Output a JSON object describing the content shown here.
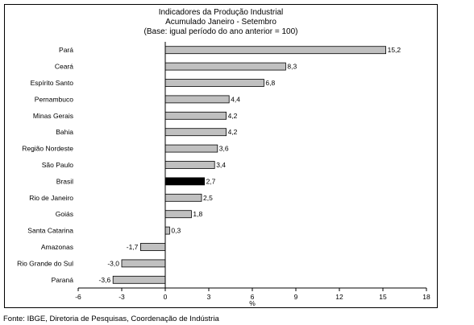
{
  "title_lines": [
    "Indicadores da Produção Industrial",
    "Acumulado Janeiro - Setembro",
    "(Base: igual período do ano anterior = 100)"
  ],
  "source": "Fonte: IBGE, Diretoria de Pesquisas, Coordenação de Indústria",
  "colors": {
    "bar": "#c0c0c0",
    "highlight": "#000000",
    "border": "#000000"
  },
  "chart_data": {
    "type": "bar",
    "orientation": "horizontal",
    "categories": [
      "Pará",
      "Ceará",
      "Espírito Santo",
      "Pernambuco",
      "Minas Gerais",
      "Bahia",
      "Região Nordeste",
      "São Paulo",
      "Brasil",
      "Rio de Janeiro",
      "Goiás",
      "Santa Catarina",
      "Amazonas",
      "Rio Grande do Sul",
      "Paraná"
    ],
    "values": [
      15.2,
      8.3,
      6.8,
      4.4,
      4.2,
      4.2,
      3.6,
      3.4,
      2.7,
      2.5,
      1.8,
      0.3,
      -1.7,
      -3.0,
      -3.6
    ],
    "value_labels": [
      "15,2",
      "8,3",
      "6,8",
      "4,4",
      "4,2",
      "4,2",
      "3,6",
      "3,4",
      "2,7",
      "2,5",
      "1,8",
      "0,3",
      "-1,7",
      "-3,0",
      "-3,6"
    ],
    "highlight": "Brasil",
    "xlim": [
      -6,
      18
    ],
    "xticks": [
      -6,
      -3,
      0,
      3,
      6,
      9,
      12,
      15,
      18
    ],
    "xtick_labels": [
      "-6",
      "-3",
      "0",
      "3",
      "6",
      "9",
      "12",
      "15",
      "18"
    ],
    "xlabel": "%",
    "grid": false,
    "legend": "none"
  }
}
